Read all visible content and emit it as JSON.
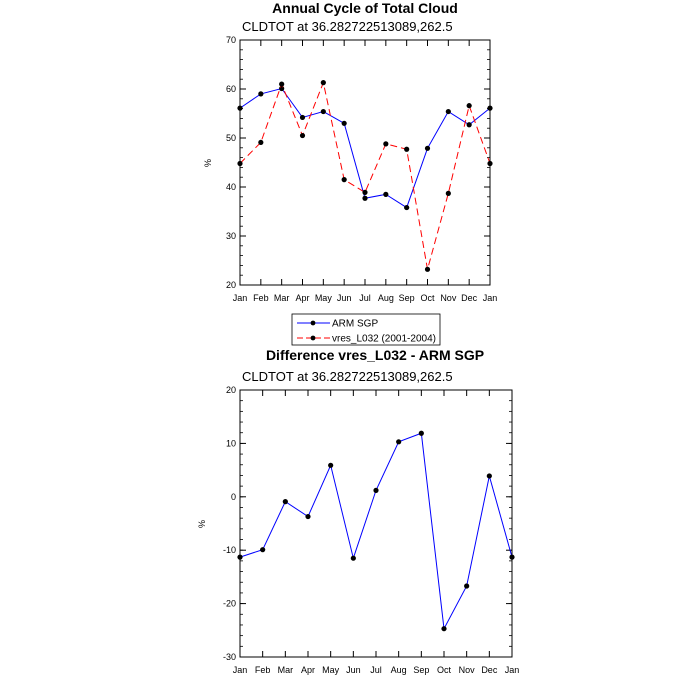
{
  "charts": [
    {
      "title": "Annual Cycle of Total Cloud",
      "subtitle": "CLDTOT at 36.282722513089,262.5",
      "ylabel": "%",
      "ylim": [
        20,
        70
      ],
      "yticks": [
        "20",
        "30",
        "40",
        "50",
        "60",
        "70"
      ],
      "xticks": [
        "Jan",
        "Feb",
        "Mar",
        "Apr",
        "May",
        "Jun",
        "Jul",
        "Aug",
        "Sep",
        "Oct",
        "Nov",
        "Dec",
        "Jan"
      ]
    },
    {
      "title": "Difference vres_L032 - ARM SGP",
      "subtitle": "CLDTOT at 36.282722513089,262.5",
      "ylabel": "%",
      "ylim": [
        -30,
        20
      ],
      "yticks": [
        "-30",
        "-20",
        "-10",
        "0",
        "10",
        "20"
      ],
      "xticks": [
        "Jan",
        "Feb",
        "Mar",
        "Apr",
        "May",
        "Jun",
        "Jul",
        "Aug",
        "Sep",
        "Oct",
        "Nov",
        "Dec",
        "Jan"
      ]
    }
  ],
  "legend": {
    "items": [
      {
        "label": "ARM SGP",
        "color": "#0000ff",
        "style": "solid"
      },
      {
        "label": "vres_L032 (2001-2004)",
        "color": "#ff0000",
        "style": "dashed"
      }
    ]
  },
  "chart_data": [
    {
      "type": "line",
      "title": "Annual Cycle of Total Cloud",
      "subtitle": "CLDTOT at 36.282722513089,262.5",
      "xlabel": "",
      "ylabel": "%",
      "ylim": [
        20,
        70
      ],
      "categories": [
        "Jan",
        "Feb",
        "Mar",
        "Apr",
        "May",
        "Jun",
        "Jul",
        "Aug",
        "Sep",
        "Oct",
        "Nov",
        "Dec",
        "Jan"
      ],
      "series": [
        {
          "name": "ARM SGP",
          "color": "#0000ff",
          "style": "solid",
          "values": [
            56.1,
            59.0,
            60.1,
            54.2,
            55.4,
            53.0,
            37.7,
            38.5,
            35.8,
            47.9,
            55.4,
            52.7,
            56.1
          ]
        },
        {
          "name": "vres_L032 (2001-2004)",
          "color": "#ff0000",
          "style": "dashed",
          "values": [
            44.8,
            49.1,
            61.0,
            50.5,
            61.3,
            41.5,
            38.9,
            48.8,
            47.7,
            23.2,
            38.7,
            56.6,
            44.8
          ]
        }
      ],
      "legend": "below"
    },
    {
      "type": "line",
      "title": "Difference vres_L032 - ARM SGP",
      "subtitle": "CLDTOT at 36.282722513089,262.5",
      "xlabel": "",
      "ylabel": "%",
      "ylim": [
        -30,
        20
      ],
      "categories": [
        "Jan",
        "Feb",
        "Mar",
        "Apr",
        "May",
        "Jun",
        "Jul",
        "Aug",
        "Sep",
        "Oct",
        "Nov",
        "Dec",
        "Jan"
      ],
      "series": [
        {
          "color": "#0000ff",
          "style": "solid",
          "values": [
            -11.3,
            -9.9,
            -0.9,
            -3.7,
            5.9,
            -11.5,
            1.2,
            10.3,
            11.9,
            -24.7,
            -16.7,
            3.9,
            -11.3
          ]
        }
      ]
    }
  ]
}
